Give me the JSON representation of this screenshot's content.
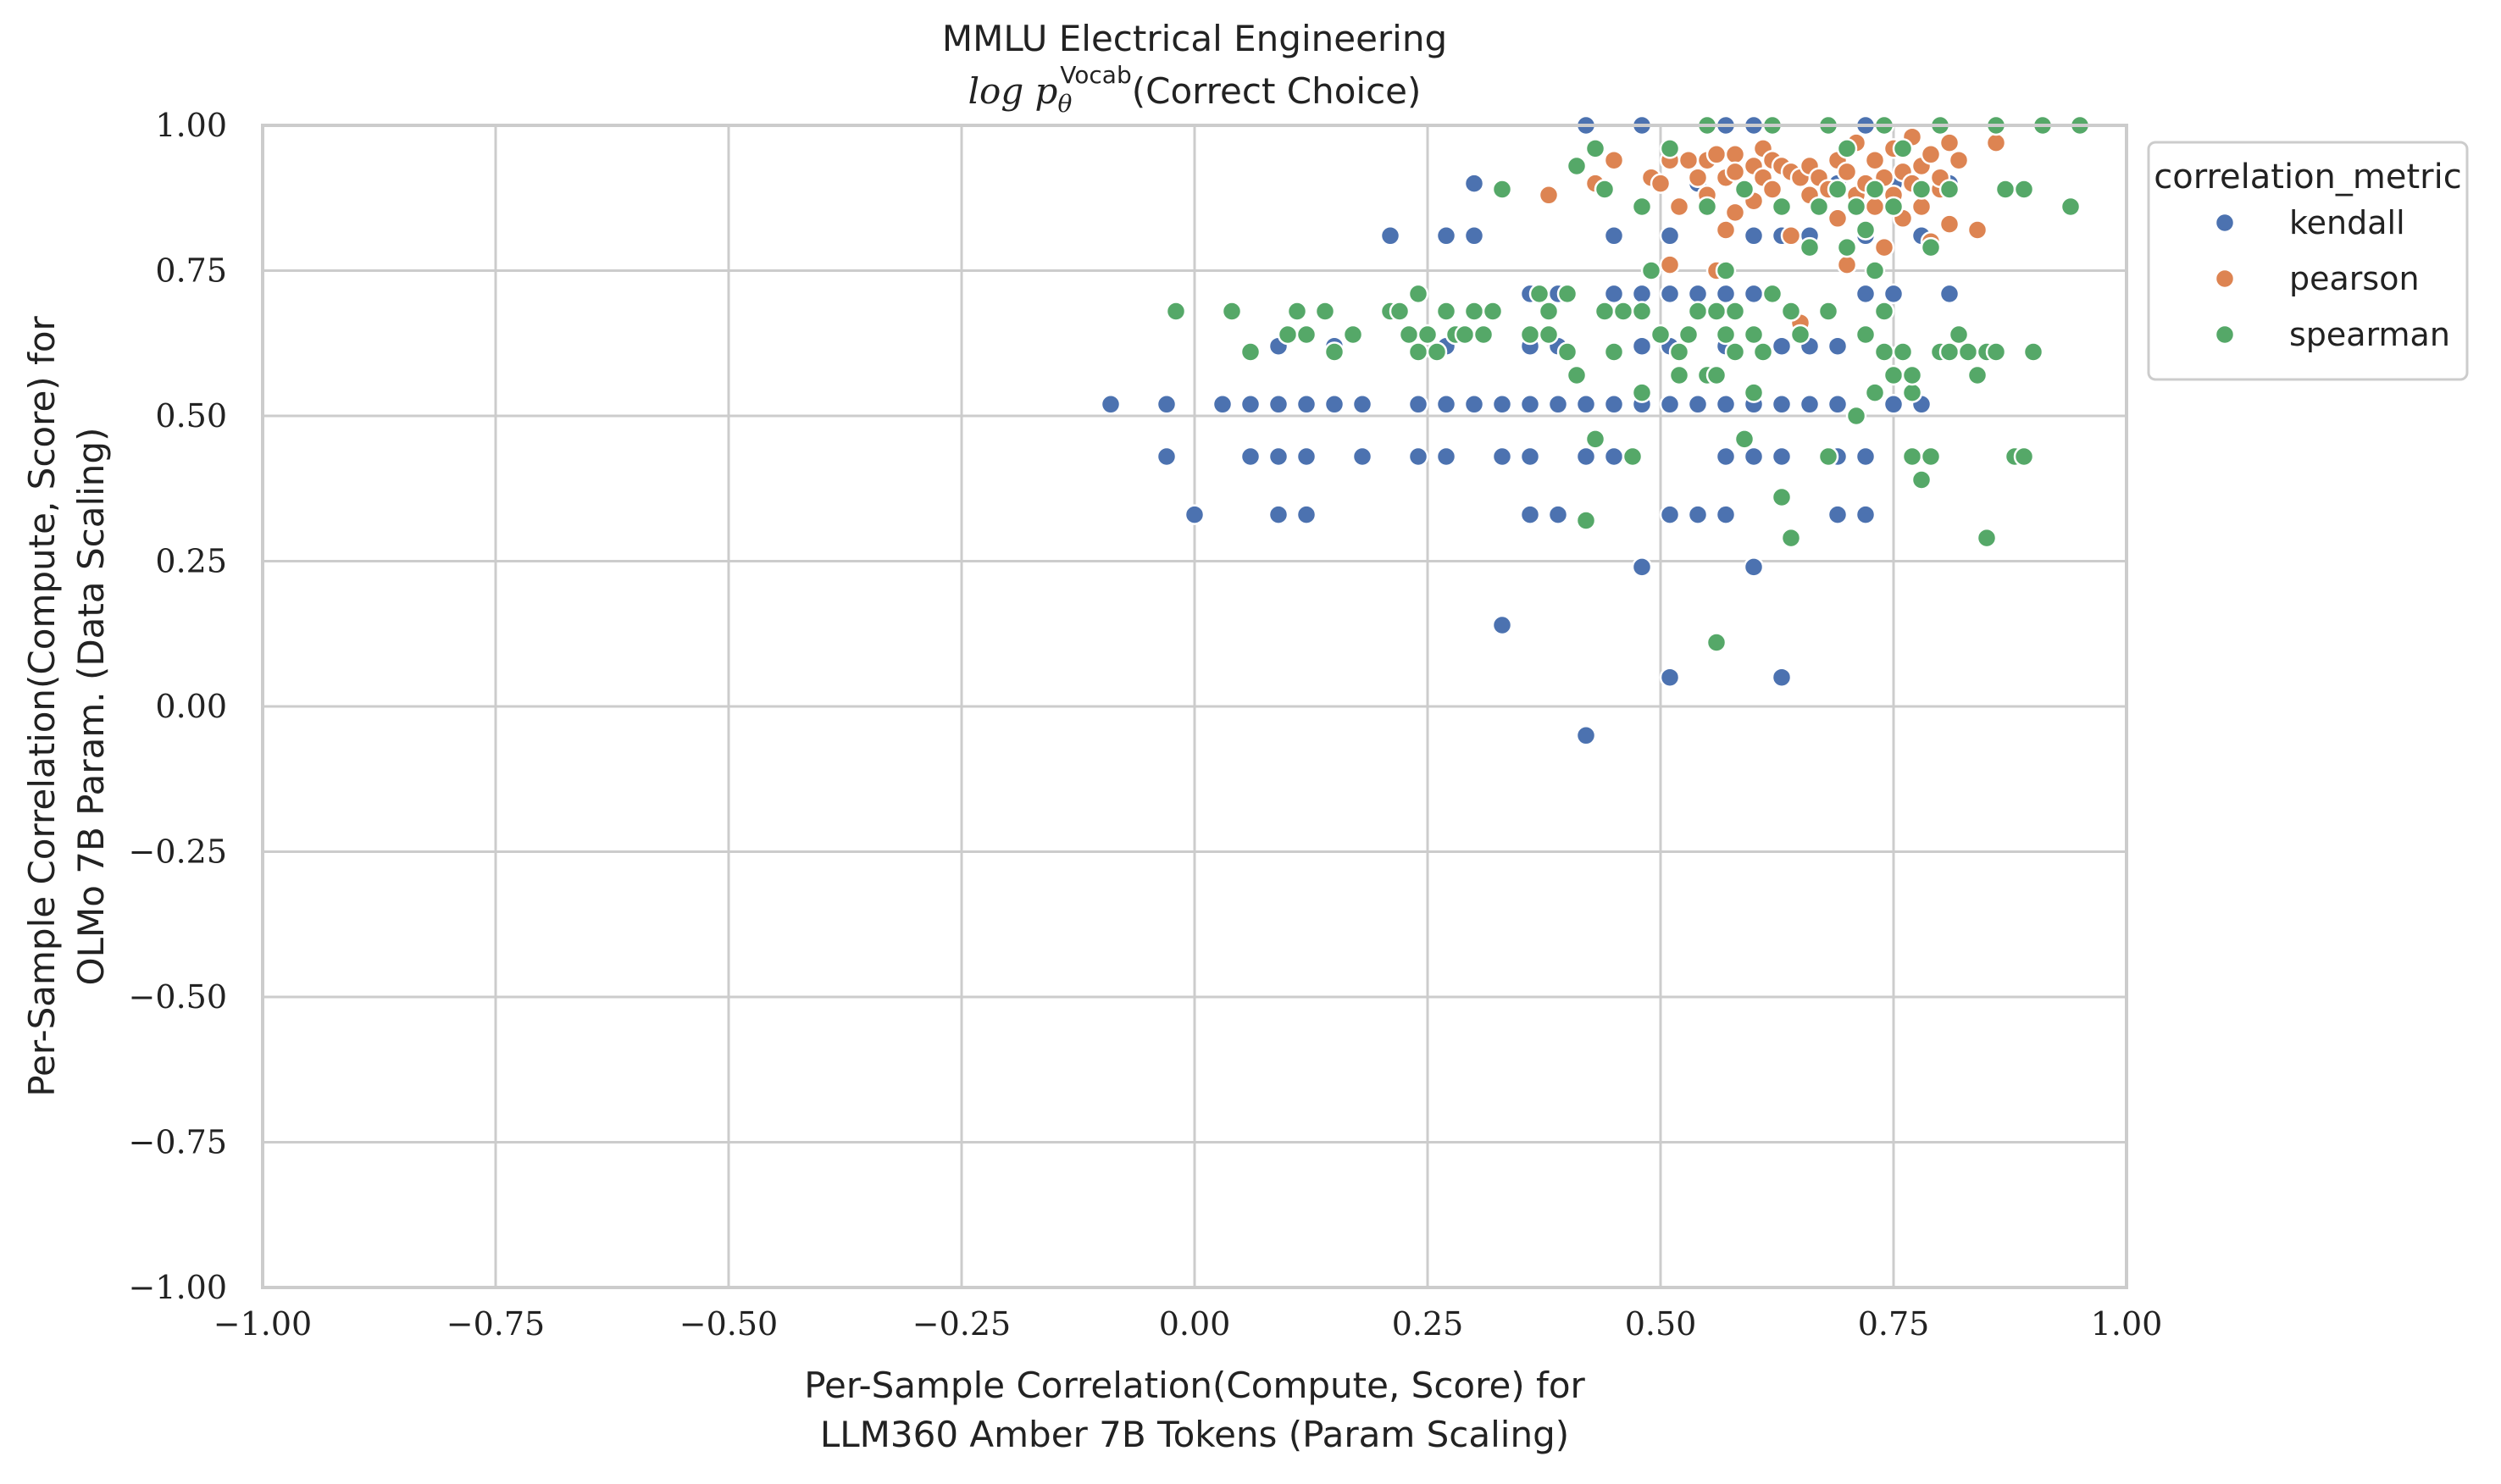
{
  "chart_data": {
    "type": "scatter",
    "title": "MMLU Electrical Engineering",
    "subtitle_prefix": "log p",
    "subtitle_sub": "θ",
    "subtitle_sup": "Vocab",
    "subtitle_suffix": "(Correct Choice)",
    "xlabel_line1": "Per-Sample Correlation(Compute, Score) for",
    "xlabel_line2": "LLM360 Amber 7B Tokens (Param Scaling)",
    "ylabel_line1": "Per-Sample Correlation(Compute, Score) for",
    "ylabel_line2": "OLMo 7B Param. (Data Scaling)",
    "xlim": [
      -1.0,
      1.0
    ],
    "ylim": [
      -1.0,
      1.0
    ],
    "xticks": [
      "−1.00",
      "−0.75",
      "−0.50",
      "−0.25",
      "0.00",
      "0.25",
      "0.50",
      "0.75",
      "1.00"
    ],
    "yticks": [
      "−1.00",
      "−0.75",
      "−0.50",
      "−0.25",
      "0.00",
      "0.25",
      "0.50",
      "0.75",
      "1.00"
    ],
    "grid": true,
    "legend_title": "correlation_metric",
    "legend_placement": "outside-top-right",
    "series": [
      {
        "name": "kendall",
        "color": "#4c72b0",
        "points": [
          [
            -0.09,
            0.52
          ],
          [
            -0.03,
            0.52
          ],
          [
            -0.03,
            0.43
          ],
          [
            0.0,
            0.33
          ],
          [
            0.03,
            0.52
          ],
          [
            0.06,
            0.52
          ],
          [
            0.06,
            0.43
          ],
          [
            0.09,
            0.52
          ],
          [
            0.09,
            0.43
          ],
          [
            0.09,
            0.33
          ],
          [
            0.09,
            0.62
          ],
          [
            0.12,
            0.52
          ],
          [
            0.12,
            0.43
          ],
          [
            0.12,
            0.33
          ],
          [
            0.15,
            0.52
          ],
          [
            0.15,
            0.62
          ],
          [
            0.18,
            0.52
          ],
          [
            0.18,
            0.43
          ],
          [
            0.21,
            0.81
          ],
          [
            0.24,
            0.52
          ],
          [
            0.24,
            0.43
          ],
          [
            0.27,
            0.52
          ],
          [
            0.27,
            0.43
          ],
          [
            0.27,
            0.62
          ],
          [
            0.27,
            0.81
          ],
          [
            0.3,
            0.52
          ],
          [
            0.3,
            0.9
          ],
          [
            0.3,
            0.81
          ],
          [
            0.33,
            0.52
          ],
          [
            0.33,
            0.43
          ],
          [
            0.33,
            0.14
          ],
          [
            0.36,
            0.52
          ],
          [
            0.36,
            0.43
          ],
          [
            0.36,
            0.33
          ],
          [
            0.36,
            0.62
          ],
          [
            0.36,
            0.71
          ],
          [
            0.39,
            0.52
          ],
          [
            0.39,
            0.33
          ],
          [
            0.39,
            0.62
          ],
          [
            0.39,
            0.71
          ],
          [
            0.42,
            0.52
          ],
          [
            0.42,
            0.43
          ],
          [
            0.42,
            -0.05
          ],
          [
            0.42,
            1.0
          ],
          [
            0.45,
            0.52
          ],
          [
            0.45,
            0.43
          ],
          [
            0.45,
            0.71
          ],
          [
            0.45,
            0.81
          ],
          [
            0.48,
            0.52
          ],
          [
            0.48,
            0.62
          ],
          [
            0.48,
            0.71
          ],
          [
            0.48,
            0.24
          ],
          [
            0.48,
            1.0
          ],
          [
            0.51,
            0.52
          ],
          [
            0.51,
            0.33
          ],
          [
            0.51,
            0.05
          ],
          [
            0.51,
            0.62
          ],
          [
            0.51,
            0.71
          ],
          [
            0.51,
            0.81
          ],
          [
            0.54,
            0.52
          ],
          [
            0.54,
            0.33
          ],
          [
            0.54,
            0.71
          ],
          [
            0.54,
            0.9
          ],
          [
            0.57,
            0.52
          ],
          [
            0.57,
            0.43
          ],
          [
            0.57,
            0.33
          ],
          [
            0.57,
            0.62
          ],
          [
            0.57,
            0.71
          ],
          [
            0.57,
            1.0
          ],
          [
            0.6,
            0.52
          ],
          [
            0.6,
            0.43
          ],
          [
            0.6,
            0.24
          ],
          [
            0.6,
            0.71
          ],
          [
            0.6,
            0.81
          ],
          [
            0.6,
            1.0
          ],
          [
            0.63,
            0.52
          ],
          [
            0.63,
            0.43
          ],
          [
            0.63,
            0.05
          ],
          [
            0.63,
            0.62
          ],
          [
            0.63,
            0.81
          ],
          [
            0.66,
            0.52
          ],
          [
            0.66,
            0.62
          ],
          [
            0.66,
            0.81
          ],
          [
            0.69,
            0.52
          ],
          [
            0.69,
            0.43
          ],
          [
            0.69,
            0.33
          ],
          [
            0.69,
            0.62
          ],
          [
            0.69,
            0.9
          ],
          [
            0.72,
            0.43
          ],
          [
            0.72,
            0.33
          ],
          [
            0.72,
            0.71
          ],
          [
            0.72,
            0.81
          ],
          [
            0.72,
            1.0
          ],
          [
            0.75,
            0.52
          ],
          [
            0.75,
            0.71
          ],
          [
            0.75,
            0.9
          ],
          [
            0.78,
            0.52
          ],
          [
            0.78,
            0.81
          ],
          [
            0.81,
            0.71
          ],
          [
            0.81,
            0.9
          ]
        ]
      },
      {
        "name": "pearson",
        "color": "#dd8452",
        "points": [
          [
            0.38,
            0.88
          ],
          [
            0.43,
            0.9
          ],
          [
            0.44,
            0.89
          ],
          [
            0.45,
            0.94
          ],
          [
            0.49,
            0.91
          ],
          [
            0.5,
            0.9
          ],
          [
            0.51,
            0.94
          ],
          [
            0.51,
            0.76
          ],
          [
            0.52,
            0.86
          ],
          [
            0.53,
            0.94
          ],
          [
            0.54,
            0.91
          ],
          [
            0.55,
            0.94
          ],
          [
            0.55,
            0.88
          ],
          [
            0.56,
            0.95
          ],
          [
            0.56,
            0.75
          ],
          [
            0.57,
            0.91
          ],
          [
            0.57,
            0.82
          ],
          [
            0.58,
            0.95
          ],
          [
            0.58,
            0.92
          ],
          [
            0.58,
            0.85
          ],
          [
            0.59,
            0.89
          ],
          [
            0.6,
            0.93
          ],
          [
            0.6,
            0.87
          ],
          [
            0.61,
            0.96
          ],
          [
            0.61,
            0.91
          ],
          [
            0.62,
            0.94
          ],
          [
            0.62,
            0.89
          ],
          [
            0.63,
            0.93
          ],
          [
            0.63,
            0.86
          ],
          [
            0.64,
            0.92
          ],
          [
            0.64,
            0.81
          ],
          [
            0.65,
            0.91
          ],
          [
            0.65,
            0.66
          ],
          [
            0.66,
            0.93
          ],
          [
            0.66,
            0.88
          ],
          [
            0.67,
            0.91
          ],
          [
            0.68,
            0.89
          ],
          [
            0.69,
            0.94
          ],
          [
            0.69,
            0.84
          ],
          [
            0.7,
            0.92
          ],
          [
            0.7,
            0.76
          ],
          [
            0.71,
            0.97
          ],
          [
            0.71,
            0.88
          ],
          [
            0.72,
            0.82
          ],
          [
            0.72,
            0.9
          ],
          [
            0.73,
            0.94
          ],
          [
            0.73,
            0.86
          ],
          [
            0.74,
            0.91
          ],
          [
            0.74,
            0.79
          ],
          [
            0.75,
            0.96
          ],
          [
            0.75,
            0.88
          ],
          [
            0.76,
            0.92
          ],
          [
            0.76,
            0.84
          ],
          [
            0.77,
            0.98
          ],
          [
            0.77,
            0.9
          ],
          [
            0.78,
            0.86
          ],
          [
            0.78,
            0.93
          ],
          [
            0.79,
            0.8
          ],
          [
            0.79,
            0.95
          ],
          [
            0.8,
            0.89
          ],
          [
            0.8,
            0.91
          ],
          [
            0.81,
            0.97
          ],
          [
            0.81,
            0.83
          ],
          [
            0.82,
            0.94
          ],
          [
            0.84,
            0.82
          ],
          [
            0.86,
            0.97
          ]
        ]
      },
      {
        "name": "spearman",
        "color": "#55a868",
        "points": [
          [
            -0.02,
            0.68
          ],
          [
            0.04,
            0.68
          ],
          [
            0.06,
            0.61
          ],
          [
            0.1,
            0.64
          ],
          [
            0.11,
            0.68
          ],
          [
            0.12,
            0.64
          ],
          [
            0.14,
            0.68
          ],
          [
            0.15,
            0.61
          ],
          [
            0.17,
            0.64
          ],
          [
            0.21,
            0.68
          ],
          [
            0.22,
            0.68
          ],
          [
            0.23,
            0.64
          ],
          [
            0.24,
            0.71
          ],
          [
            0.24,
            0.61
          ],
          [
            0.25,
            0.64
          ],
          [
            0.26,
            0.61
          ],
          [
            0.27,
            0.68
          ],
          [
            0.28,
            0.64
          ],
          [
            0.29,
            0.64
          ],
          [
            0.3,
            0.68
          ],
          [
            0.31,
            0.64
          ],
          [
            0.32,
            0.68
          ],
          [
            0.33,
            0.89
          ],
          [
            0.36,
            0.64
          ],
          [
            0.37,
            0.71
          ],
          [
            0.38,
            0.68
          ],
          [
            0.38,
            0.64
          ],
          [
            0.4,
            0.71
          ],
          [
            0.4,
            0.61
          ],
          [
            0.41,
            0.57
          ],
          [
            0.41,
            0.93
          ],
          [
            0.42,
            0.32
          ],
          [
            0.43,
            0.46
          ],
          [
            0.43,
            0.96
          ],
          [
            0.44,
            0.68
          ],
          [
            0.44,
            0.89
          ],
          [
            0.45,
            0.61
          ],
          [
            0.46,
            0.68
          ],
          [
            0.47,
            0.43
          ],
          [
            0.48,
            0.54
          ],
          [
            0.48,
            0.68
          ],
          [
            0.48,
            0.86
          ],
          [
            0.49,
            0.75
          ],
          [
            0.5,
            0.64
          ],
          [
            0.51,
            0.96
          ],
          [
            0.52,
            0.61
          ],
          [
            0.53,
            0.64
          ],
          [
            0.54,
            0.68
          ],
          [
            0.55,
            0.57
          ],
          [
            0.55,
            0.86
          ],
          [
            0.56,
            0.11
          ],
          [
            0.56,
            0.68
          ],
          [
            0.56,
            0.57
          ],
          [
            0.57,
            0.64
          ],
          [
            0.57,
            0.75
          ],
          [
            0.58,
            0.61
          ],
          [
            0.58,
            0.68
          ],
          [
            0.59,
            0.46
          ],
          [
            0.59,
            0.89
          ],
          [
            0.6,
            0.54
          ],
          [
            0.6,
            0.64
          ],
          [
            0.61,
            0.61
          ],
          [
            0.62,
            0.71
          ],
          [
            0.63,
            0.36
          ],
          [
            0.63,
            0.86
          ],
          [
            0.64,
            0.29
          ],
          [
            0.64,
            0.68
          ],
          [
            0.65,
            0.64
          ],
          [
            0.66,
            0.79
          ],
          [
            0.67,
            0.86
          ],
          [
            0.68,
            0.43
          ],
          [
            0.68,
            0.68
          ],
          [
            0.69,
            0.89
          ],
          [
            0.7,
            0.79
          ],
          [
            0.7,
            0.96
          ],
          [
            0.71,
            0.5
          ],
          [
            0.71,
            0.86
          ],
          [
            0.72,
            0.64
          ],
          [
            0.72,
            0.82
          ],
          [
            0.73,
            0.54
          ],
          [
            0.73,
            0.75
          ],
          [
            0.73,
            0.89
          ],
          [
            0.74,
            0.61
          ],
          [
            0.74,
            0.68
          ],
          [
            0.75,
            0.57
          ],
          [
            0.75,
            0.86
          ],
          [
            0.76,
            0.61
          ],
          [
            0.76,
            0.96
          ],
          [
            0.77,
            0.43
          ],
          [
            0.77,
            0.54
          ],
          [
            0.77,
            0.57
          ],
          [
            0.78,
            0.39
          ],
          [
            0.78,
            0.89
          ],
          [
            0.79,
            0.43
          ],
          [
            0.79,
            0.79
          ],
          [
            0.8,
            0.61
          ],
          [
            0.81,
            0.89
          ],
          [
            0.81,
            0.61
          ],
          [
            0.82,
            0.64
          ],
          [
            0.83,
            0.61
          ],
          [
            0.84,
            0.57
          ],
          [
            0.85,
            0.61
          ],
          [
            0.85,
            0.29
          ],
          [
            0.86,
            0.61
          ],
          [
            0.87,
            0.89
          ],
          [
            0.88,
            0.43
          ],
          [
            0.89,
            0.43
          ],
          [
            0.89,
            0.89
          ],
          [
            0.9,
            0.61
          ],
          [
            0.91,
            1.0
          ],
          [
            0.94,
            0.86
          ],
          [
            0.95,
            1.0
          ],
          [
            0.55,
            1.0
          ],
          [
            0.62,
            1.0
          ],
          [
            0.68,
            1.0
          ],
          [
            0.74,
            1.0
          ],
          [
            0.8,
            1.0
          ],
          [
            0.86,
            1.0
          ],
          [
            0.64,
            0.68
          ],
          [
            0.52,
            0.57
          ]
        ]
      }
    ]
  }
}
